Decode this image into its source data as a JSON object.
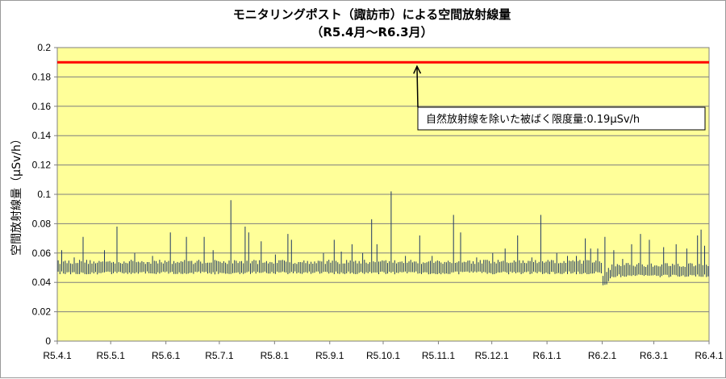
{
  "chart_data": {
    "type": "line",
    "title": "モニタリングポスト（諏訪市）による空間放射線量",
    "subtitle": "（R5.4月〜R6.3月）",
    "ylabel": "空間放射線量（μSv/h）",
    "xlabel": "",
    "ylim": [
      0,
      0.2
    ],
    "yticks": [
      0,
      0.02,
      0.04,
      0.06,
      0.08,
      0.1,
      0.12,
      0.14,
      0.16,
      0.18,
      0.2
    ],
    "ytick_labels": [
      "0",
      "0.02",
      "0.04",
      "0.06",
      "0.08",
      "0.1",
      "0.12",
      "0.14",
      "0.16",
      "0.18",
      "0.2"
    ],
    "x_start": "2023-04-01",
    "x_end": "2024-04-01",
    "xtick_dates": [
      "2023-04-01",
      "2023-05-01",
      "2023-06-01",
      "2023-07-01",
      "2023-08-01",
      "2023-09-01",
      "2023-10-01",
      "2023-11-01",
      "2023-12-01",
      "2024-01-01",
      "2024-02-01",
      "2024-03-01",
      "2024-04-01"
    ],
    "xtick_labels": [
      "R5.4.1",
      "R5.5.1",
      "R5.6.1",
      "R5.7.1",
      "R5.8.1",
      "R5.9.1",
      "R5.10.1",
      "R5.11.1",
      "R5.12.1",
      "R6.1.1",
      "R6.2.1",
      "R6.3.1",
      "R6.4.1"
    ],
    "grid": true,
    "background": "#ffff99",
    "series": [
      {
        "color": "#1f3864",
        "baseline": 0.05,
        "baseline_after_2024_02_01": 0.048,
        "peaks": [
          {
            "x": "2023-04-03",
            "y": 0.062
          },
          {
            "x": "2023-04-10",
            "y": 0.057
          },
          {
            "x": "2023-04-15",
            "y": 0.071
          },
          {
            "x": "2023-04-27",
            "y": 0.062
          },
          {
            "x": "2023-05-04",
            "y": 0.078
          },
          {
            "x": "2023-05-14",
            "y": 0.06
          },
          {
            "x": "2023-05-24",
            "y": 0.058
          },
          {
            "x": "2023-06-03",
            "y": 0.074
          },
          {
            "x": "2023-06-12",
            "y": 0.071
          },
          {
            "x": "2023-06-22",
            "y": 0.071
          },
          {
            "x": "2023-06-27",
            "y": 0.062
          },
          {
            "x": "2023-07-07",
            "y": 0.096
          },
          {
            "x": "2023-07-15",
            "y": 0.078
          },
          {
            "x": "2023-07-17",
            "y": 0.074
          },
          {
            "x": "2023-07-24",
            "y": 0.068
          },
          {
            "x": "2023-08-01",
            "y": 0.059
          },
          {
            "x": "2023-08-08",
            "y": 0.073
          },
          {
            "x": "2023-08-10",
            "y": 0.069
          },
          {
            "x": "2023-08-28",
            "y": 0.06
          },
          {
            "x": "2023-09-03",
            "y": 0.069
          },
          {
            "x": "2023-09-07",
            "y": 0.061
          },
          {
            "x": "2023-09-13",
            "y": 0.066
          },
          {
            "x": "2023-09-19",
            "y": 0.06
          },
          {
            "x": "2023-09-24",
            "y": 0.083
          },
          {
            "x": "2023-09-27",
            "y": 0.066
          },
          {
            "x": "2023-10-05",
            "y": 0.102
          },
          {
            "x": "2023-10-13",
            "y": 0.058
          },
          {
            "x": "2023-10-21",
            "y": 0.072
          },
          {
            "x": "2023-10-28",
            "y": 0.058
          },
          {
            "x": "2023-11-09",
            "y": 0.086
          },
          {
            "x": "2023-11-13",
            "y": 0.074
          },
          {
            "x": "2023-11-22",
            "y": 0.057
          },
          {
            "x": "2023-12-01",
            "y": 0.06
          },
          {
            "x": "2023-12-08",
            "y": 0.063
          },
          {
            "x": "2023-12-15",
            "y": 0.072
          },
          {
            "x": "2023-12-23",
            "y": 0.057
          },
          {
            "x": "2023-12-28",
            "y": 0.086
          },
          {
            "x": "2024-01-06",
            "y": 0.06
          },
          {
            "x": "2024-01-12",
            "y": 0.058
          },
          {
            "x": "2024-01-17",
            "y": 0.058
          },
          {
            "x": "2024-01-22",
            "y": 0.07
          },
          {
            "x": "2024-01-25",
            "y": 0.063
          },
          {
            "x": "2024-01-29",
            "y": 0.063
          },
          {
            "x": "2024-02-02",
            "y": 0.071
          },
          {
            "x": "2024-02-07",
            "y": 0.062
          },
          {
            "x": "2024-02-12",
            "y": 0.056
          },
          {
            "x": "2024-02-17",
            "y": 0.066
          },
          {
            "x": "2024-02-22",
            "y": 0.073
          },
          {
            "x": "2024-02-27",
            "y": 0.069
          },
          {
            "x": "2024-03-06",
            "y": 0.064
          },
          {
            "x": "2024-03-13",
            "y": 0.066
          },
          {
            "x": "2024-03-19",
            "y": 0.063
          },
          {
            "x": "2024-03-25",
            "y": 0.072
          },
          {
            "x": "2024-03-27",
            "y": 0.076
          },
          {
            "x": "2024-03-29",
            "y": 0.065
          }
        ],
        "dips": [
          {
            "x": "2024-02-01",
            "y": 0.038
          }
        ]
      },
      {
        "color": "#ff0000",
        "x": [
          "2023-04-01",
          "2024-04-01"
        ],
        "y": [
          0.19,
          0.19
        ]
      }
    ],
    "annotation": {
      "text": "自然放射線を除いた被ばく限度量:0.19μSv/h",
      "points_to": {
        "x": "2023-10-20",
        "y": 0.19
      }
    }
  }
}
